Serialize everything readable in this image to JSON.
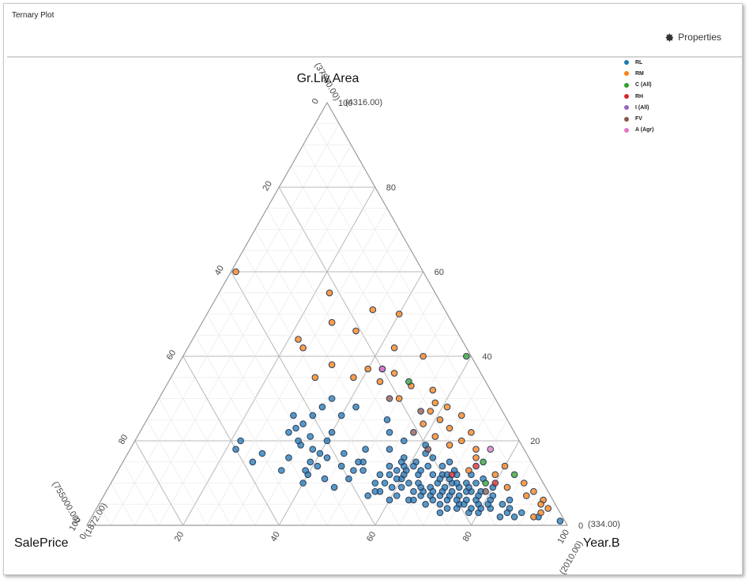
{
  "window": {
    "title": "Ternary Plot"
  },
  "toolbar": {
    "properties_label": "Properties",
    "properties_icon": "gear-icon"
  },
  "legend": [
    {
      "label": "RL",
      "color": "#1f77b4"
    },
    {
      "label": "RM",
      "color": "#ff7f0e"
    },
    {
      "label": "C (All)",
      "color": "#2ca02c"
    },
    {
      "label": "RH",
      "color": "#d62728"
    },
    {
      "label": "I (All)",
      "color": "#9467bd"
    },
    {
      "label": "FV",
      "color": "#8c564b"
    },
    {
      "label": "A (Agr)",
      "color": "#e377c2"
    }
  ],
  "chart_data": {
    "type": "scatter",
    "subtype": "ternary",
    "axes": {
      "top": {
        "label": "Gr.Liv.Area",
        "min_label": "(334.00)",
        "max_label": "(4316.00)"
      },
      "left": {
        "label": "SalePrice",
        "min_label": "(37900.00)",
        "max_label": "(755000.00)"
      },
      "right": {
        "label": "Year.B",
        "min_label": "(1872.00)",
        "max_label": "(2010.00)"
      }
    },
    "ticks": [
      0,
      20,
      40,
      60,
      80,
      100
    ],
    "grid": true,
    "legend_position": "top-right",
    "series": [
      {
        "name": "RL",
        "color": "#1f77b4",
        "points": [
          [
            5,
            20,
            75
          ],
          [
            4,
            23,
            73
          ],
          [
            3,
            25,
            72
          ],
          [
            6,
            22,
            72
          ],
          [
            5,
            27,
            68
          ],
          [
            7,
            25,
            68
          ],
          [
            8,
            22,
            70
          ],
          [
            4,
            21,
            75
          ],
          [
            6,
            18,
            76
          ],
          [
            3,
            17,
            80
          ],
          [
            5,
            16,
            79
          ],
          [
            4,
            14,
            82
          ],
          [
            2,
            13,
            85
          ],
          [
            6,
            13,
            81
          ],
          [
            8,
            16,
            76
          ],
          [
            10,
            22,
            68
          ],
          [
            8,
            28,
            64
          ],
          [
            6,
            30,
            64
          ],
          [
            10,
            26,
            64
          ],
          [
            9,
            24,
            67
          ],
          [
            12,
            25,
            63
          ],
          [
            14,
            22,
            64
          ],
          [
            12,
            20,
            68
          ],
          [
            16,
            26,
            58
          ],
          [
            14,
            30,
            56
          ],
          [
            12,
            33,
            55
          ],
          [
            10,
            35,
            55
          ],
          [
            9,
            32,
            59
          ],
          [
            18,
            28,
            54
          ],
          [
            20,
            24,
            56
          ],
          [
            15,
            35,
            50
          ],
          [
            18,
            33,
            49
          ],
          [
            22,
            26,
            52
          ],
          [
            25,
            25,
            50
          ],
          [
            28,
            30,
            42
          ],
          [
            26,
            34,
            40
          ],
          [
            22,
            38,
            40
          ],
          [
            20,
            40,
            40
          ],
          [
            17,
            43,
            40
          ],
          [
            15,
            46,
            39
          ],
          [
            12,
            48,
            40
          ],
          [
            10,
            50,
            40
          ],
          [
            13,
            53,
            34
          ],
          [
            16,
            50,
            34
          ],
          [
            19,
            46,
            35
          ],
          [
            21,
            43,
            36
          ],
          [
            23,
            45,
            32
          ],
          [
            26,
            40,
            34
          ],
          [
            28,
            37,
            35
          ],
          [
            30,
            34,
            36
          ],
          [
            11,
            40,
            49
          ],
          [
            13,
            38,
            49
          ],
          [
            15,
            36,
            49
          ],
          [
            17,
            38,
            45
          ],
          [
            9,
            44,
            47
          ],
          [
            11,
            45,
            44
          ],
          [
            7,
            38,
            55
          ],
          [
            8,
            35,
            57
          ],
          [
            9,
            30,
            61
          ],
          [
            7,
            27,
            66
          ],
          [
            6,
            29,
            65
          ],
          [
            11,
            29,
            60
          ],
          [
            13,
            27,
            60
          ],
          [
            15,
            24,
            61
          ],
          [
            17,
            21,
            62
          ],
          [
            19,
            20,
            61
          ],
          [
            14,
            19,
            67
          ],
          [
            12,
            17,
            71
          ],
          [
            10,
            16,
            74
          ],
          [
            9,
            18,
            73
          ],
          [
            2,
            5,
            93
          ],
          [
            1,
            1,
            98
          ],
          [
            3,
            8,
            89
          ],
          [
            2,
            10,
            88
          ],
          [
            4,
            10,
            86
          ],
          [
            5,
            11,
            84
          ],
          [
            3,
            11,
            86
          ],
          [
            6,
            9,
            85
          ],
          [
            7,
            12,
            81
          ],
          [
            5,
            14,
            81
          ],
          [
            4,
            16,
            80
          ],
          [
            7,
            19,
            74
          ],
          [
            8,
            14,
            78
          ],
          [
            10,
            14,
            76
          ],
          [
            11,
            12,
            77
          ],
          [
            9,
            11,
            80
          ],
          [
            12,
            14,
            74
          ],
          [
            13,
            17,
            70
          ],
          [
            15,
            17,
            68
          ],
          [
            16,
            20,
            64
          ],
          [
            8,
            26,
            66
          ],
          [
            7,
            32,
            61
          ],
          [
            6,
            34,
            60
          ],
          [
            8,
            36,
            56
          ],
          [
            10,
            33,
            57
          ],
          [
            12,
            31,
            57
          ],
          [
            13,
            36,
            51
          ],
          [
            14,
            40,
            46
          ],
          [
            16,
            42,
            42
          ],
          [
            18,
            44,
            38
          ],
          [
            20,
            46,
            34
          ],
          [
            22,
            47,
            31
          ],
          [
            24,
            43,
            33
          ],
          [
            26,
            44,
            30
          ],
          [
            17,
            55,
            28
          ],
          [
            15,
            58,
            27
          ],
          [
            18,
            60,
            22
          ],
          [
            20,
            58,
            22
          ],
          [
            13,
            48,
            39
          ],
          [
            14,
            45,
            41
          ],
          [
            5,
            24,
            71
          ],
          [
            6,
            25,
            69
          ],
          [
            7,
            23,
            70
          ],
          [
            8,
            24,
            68
          ],
          [
            9,
            26,
            65
          ],
          [
            10,
            28,
            62
          ],
          [
            11,
            30,
            59
          ],
          [
            12,
            28,
            60
          ],
          [
            13,
            29,
            58
          ],
          [
            14,
            27,
            59
          ],
          [
            6,
            20,
            74
          ],
          [
            7,
            21,
            72
          ],
          [
            8,
            20,
            72
          ],
          [
            9,
            21,
            70
          ],
          [
            10,
            19,
            71
          ],
          [
            11,
            21,
            68
          ],
          [
            12,
            22,
            66
          ],
          [
            13,
            24,
            63
          ],
          [
            14,
            25,
            61
          ],
          [
            15,
            27,
            58
          ],
          [
            3,
            19,
            78
          ],
          [
            4,
            18,
            78
          ],
          [
            5,
            19,
            76
          ],
          [
            6,
            16,
            78
          ],
          [
            7,
            15,
            78
          ],
          [
            8,
            17,
            75
          ],
          [
            9,
            16,
            75
          ],
          [
            10,
            18,
            72
          ],
          [
            11,
            19,
            70
          ],
          [
            12,
            19,
            69
          ]
        ]
      },
      {
        "name": "RM",
        "color": "#ff7f0e",
        "points": [
          [
            60,
            39,
            1
          ],
          [
            55,
            22,
            23
          ],
          [
            51,
            15,
            34
          ],
          [
            50,
            10,
            40
          ],
          [
            48,
            25,
            27
          ],
          [
            46,
            21,
            33
          ],
          [
            44,
            34,
            22
          ],
          [
            42,
            34,
            24
          ],
          [
            42,
            15,
            43
          ],
          [
            40,
            10,
            50
          ],
          [
            38,
            30,
            32
          ],
          [
            37,
            23,
            40
          ],
          [
            36,
            18,
            46
          ],
          [
            35,
            35,
            30
          ],
          [
            35,
            27,
            38
          ],
          [
            34,
            22,
            44
          ],
          [
            33,
            16,
            51
          ],
          [
            32,
            12,
            56
          ],
          [
            30,
            20,
            50
          ],
          [
            29,
            13,
            58
          ],
          [
            28,
            11,
            61
          ],
          [
            27,
            15,
            58
          ],
          [
            26,
            9,
            65
          ],
          [
            25,
            14,
            61
          ],
          [
            24,
            18,
            58
          ],
          [
            22,
            9,
            69
          ],
          [
            20,
            12,
            68
          ],
          [
            18,
            10,
            72
          ],
          [
            14,
            6,
            80
          ],
          [
            10,
            4,
            86
          ],
          [
            8,
            3,
            89
          ],
          [
            6,
            2,
            92
          ],
          [
            5,
            3,
            92
          ],
          [
            4,
            2,
            94
          ],
          [
            3,
            4,
            93
          ],
          [
            2,
            6,
            92
          ],
          [
            7,
            5,
            88
          ],
          [
            9,
            8,
            83
          ],
          [
            12,
            9,
            79
          ],
          [
            16,
            11,
            73
          ],
          [
            13,
            14,
            73
          ],
          [
            19,
            15,
            66
          ],
          [
            21,
            17,
            62
          ],
          [
            23,
            13,
            64
          ]
        ]
      },
      {
        "name": "C (All)",
        "color": "#2ca02c",
        "points": [
          [
            34,
            16,
            50
          ],
          [
            40,
            1,
            59
          ],
          [
            12,
            5,
            83
          ],
          [
            15,
            10,
            75
          ],
          [
            10,
            12,
            78
          ]
        ]
      },
      {
        "name": "RH",
        "color": "#d62728",
        "points": [
          [
            12,
            18,
            70
          ],
          [
            10,
            10,
            80
          ],
          [
            14,
            12,
            74
          ]
        ]
      },
      {
        "name": "I (All)",
        "color": "#9467bd",
        "points": [
          [
            37,
            20,
            43
          ]
        ]
      },
      {
        "name": "FV",
        "color": "#8c564b",
        "points": [
          [
            22,
            21,
            57
          ],
          [
            27,
            17,
            56
          ],
          [
            18,
            20,
            62
          ],
          [
            30,
            22,
            48
          ],
          [
            8,
            13,
            79
          ]
        ]
      },
      {
        "name": "A (Agr)",
        "color": "#e377c2",
        "points": [
          [
            37,
            20,
            43
          ],
          [
            18,
            7,
            75
          ]
        ]
      }
    ]
  }
}
